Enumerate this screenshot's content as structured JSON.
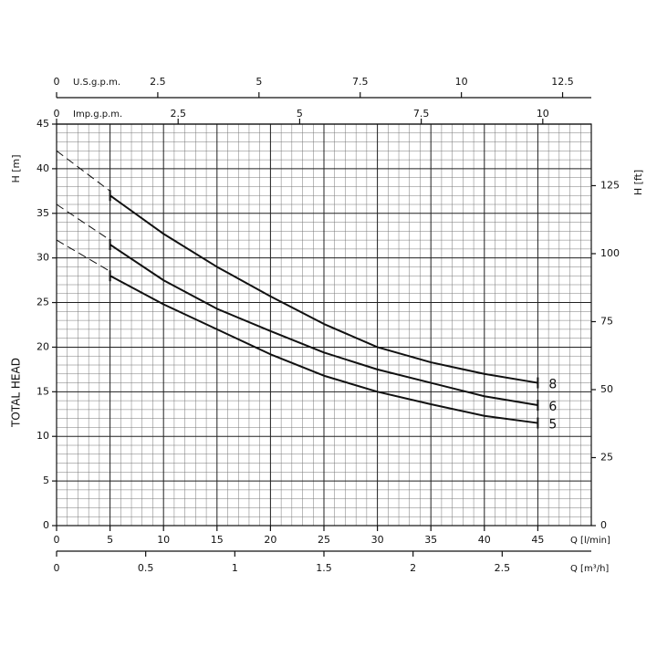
{
  "chart_data": {
    "type": "line",
    "xlabel": "Q [l/min]",
    "ylabel": "H [m]",
    "y2label": "H [ft]",
    "side_label": "TOTAL HEAD",
    "x": [
      5,
      10,
      15,
      20,
      25,
      30,
      35,
      40,
      45
    ],
    "xlim": [
      0,
      50
    ],
    "xticks": [
      0,
      5,
      10,
      15,
      20,
      25,
      30,
      35,
      40,
      45
    ],
    "ylim": [
      0,
      45
    ],
    "yticks": [
      0,
      5,
      10,
      15,
      20,
      25,
      30,
      35,
      40,
      45
    ],
    "y2lim": [
      0,
      147.64
    ],
    "y2ticks": [
      0,
      25,
      50,
      75,
      100,
      125
    ],
    "top_axes": [
      {
        "label": "U.S.g.p.m.",
        "xlim": [
          0,
          13.209
        ],
        "xticks": [
          0,
          2.5,
          5,
          7.5,
          10,
          12.5
        ]
      },
      {
        "label": "Imp.g.p.m.",
        "xlim": [
          0,
          10.998
        ],
        "xticks": [
          0,
          2.5,
          5,
          7.5,
          10
        ]
      }
    ],
    "bottom_axis2": {
      "label": "Q [m³/h]",
      "xlim": [
        0,
        3
      ],
      "xticks": [
        0,
        0.5,
        1,
        1.5,
        2,
        2.5
      ]
    },
    "grid": true,
    "minor_grid": true,
    "color": "#111111",
    "series": [
      {
        "name": "8",
        "values": [
          37,
          32.7,
          29,
          25.7,
          22.6,
          20,
          18.3,
          17,
          16
        ],
        "extrapolated_x": [
          0,
          5
        ],
        "extrapolated_values": [
          42,
          37.5
        ]
      },
      {
        "name": "6",
        "values": [
          31.5,
          27.5,
          24.3,
          21.8,
          19.4,
          17.5,
          16,
          14.5,
          13.5
        ],
        "extrapolated_x": [
          0,
          5
        ],
        "extrapolated_values": [
          36,
          32
        ]
      },
      {
        "name": "5",
        "values": [
          28,
          24.8,
          22,
          19.2,
          16.8,
          15,
          13.6,
          12.3,
          11.5
        ],
        "extrapolated_x": [
          0,
          5
        ],
        "extrapolated_values": [
          32,
          28.5
        ]
      }
    ]
  }
}
